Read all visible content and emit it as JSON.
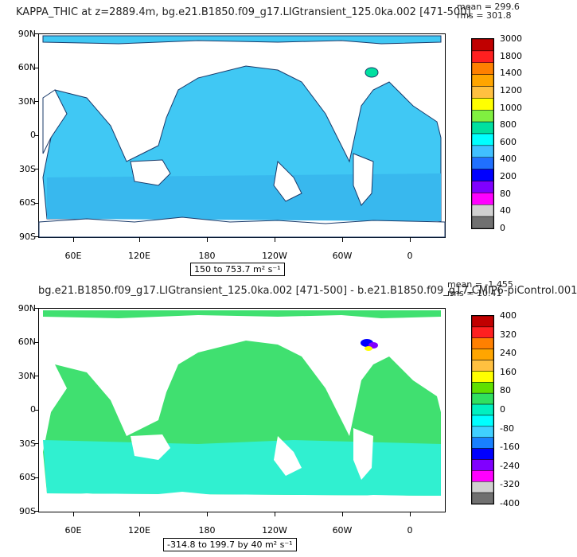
{
  "top": {
    "title": "KAPPA_THIC at z=2889.4m, bg.e21.B1850.f09_g17.LIGtransient_125.0ka.002 [471-500]",
    "mean": "mean = 299.6",
    "rms": "rms = 301.8",
    "range": "150 to 753.7 m² s⁻¹"
  },
  "bottom": {
    "title": "bg.e21.B1850.f09_g17.LIGtransient_125.0ka.002 [471-500] - b.e21.B1850.f09_g17.CMIP6-piControl.001",
    "mean": "mean = -1.455",
    "rms": "rms = 10.41",
    "range": "-314.8 to 199.7 by 40 m² s⁻¹"
  },
  "axes": {
    "lat_labels": [
      "90N",
      "60N",
      "30N",
      "0",
      "30S",
      "60S",
      "90S"
    ],
    "lon_labels": [
      "60E",
      "120E",
      "180",
      "120W",
      "60W",
      "0"
    ]
  },
  "chart_data": [
    {
      "type": "heatmap",
      "title": "KAPPA_THIC at z=2889.4m, bg.e21.B1850.f09_g17.LIGtransient_125.0ka.002 [471-500]",
      "xlim": [
        30,
        390
      ],
      "ylim": [
        -90,
        90
      ],
      "x_ticks": [
        60,
        120,
        180,
        240,
        300,
        360
      ],
      "y_ticks": [
        90,
        60,
        30,
        0,
        -30,
        -60,
        -90
      ],
      "colorbar_levels": [
        "3000",
        "1800",
        "1400",
        "1200",
        "1000",
        "800",
        "600",
        "400",
        "200",
        "80",
        "40",
        "0"
      ],
      "colorbar_colors": [
        "#c00000",
        "#ff2020",
        "#ff8000",
        "#ffa500",
        "#ffc040",
        "#ffff00",
        "#80f040",
        "#00e0a0",
        "#00ffff",
        "#40c0ff",
        "#2070ff",
        "#0000ff",
        "#8000ff",
        "#ff00ff",
        "#d0d0d0",
        "#707070"
      ],
      "dominant_color": "#40c8f4",
      "stats": {
        "mean": 299.6,
        "rms": 301.8,
        "min": 150,
        "max": 753.7
      },
      "units": "m² s⁻¹"
    },
    {
      "type": "heatmap",
      "title": "bg.e21.B1850.f09_g17.LIGtransient_125.0ka.002 [471-500] - b.e21.B1850.f09_g17.CMIP6-piControl.001",
      "xlim": [
        30,
        390
      ],
      "ylim": [
        -90,
        90
      ],
      "x_ticks": [
        60,
        120,
        180,
        240,
        300,
        360
      ],
      "y_ticks": [
        90,
        60,
        30,
        0,
        -30,
        -60,
        -90
      ],
      "colorbar_levels": [
        "400",
        "320",
        "240",
        "160",
        "80",
        "0",
        "-80",
        "-160",
        "-240",
        "-320",
        "-400"
      ],
      "colorbar_colors": [
        "#c00000",
        "#ff2020",
        "#ff8000",
        "#ffa500",
        "#ffc040",
        "#ffff00",
        "#60e000",
        "#30e060",
        "#00f0c0",
        "#00ffff",
        "#40d0ff",
        "#1880ff",
        "#0000ff",
        "#8000ff",
        "#ff00ff",
        "#d0d0d0",
        "#707070"
      ],
      "dominant_colors": [
        "#40e070",
        "#30f0d0"
      ],
      "stats": {
        "mean": -1.455,
        "rms": 10.41,
        "min": -314.8,
        "max": 199.7,
        "interval": 40
      },
      "units": "m² s⁻¹"
    }
  ]
}
